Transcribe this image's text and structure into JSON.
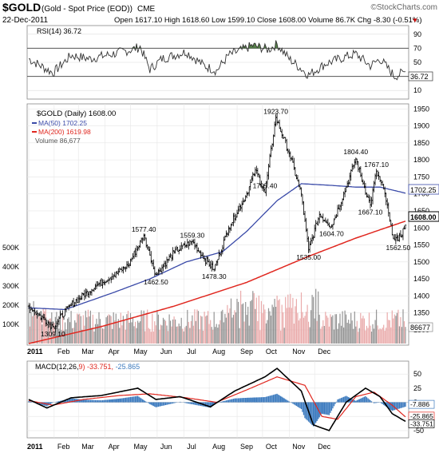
{
  "header": {
    "symbol": "$GOLD",
    "name": "(Gold - Spot Price (EOD))",
    "exchange": "CME",
    "watermark": "©StockCharts.com",
    "date": "22-Dec-2011",
    "ohlc": "Open 1617.10  High 1618.60  Low 1599.10  Close 1608.00  Volume 86.7K  Chg -8.30 (-0.51%)",
    "chg_marker": "▼"
  },
  "rsi": {
    "label": "RSI(14) 36.72",
    "current": 36.72,
    "ticks": [
      "90",
      "70",
      "50",
      "30",
      "10"
    ],
    "levels": [
      90,
      70,
      50,
      30,
      10
    ],
    "value_label": "36.72"
  },
  "price": {
    "title": "$GOLD (Daily) 1608.00",
    "legend_ma50": "MA(50) 1702.25",
    "legend_ma200": "MA(200) 1619.98",
    "legend_volume": "Volume 86,677",
    "ticks": [
      "1950",
      "1900",
      "1850",
      "1800",
      "1750",
      "1700",
      "1650",
      "1600",
      "1550",
      "1500",
      "1450",
      "1400",
      "1350",
      "1300"
    ],
    "tick_values": [
      1950,
      1900,
      1850,
      1800,
      1750,
      1700,
      1650,
      1600,
      1550,
      1500,
      1450,
      1400,
      1350,
      1300
    ],
    "ma50_label": "1702.25",
    "close_label": "1608.00",
    "volume_label": "86677",
    "volume_ticks": [
      "500K",
      "400K",
      "300K",
      "200K",
      "100K"
    ],
    "volume_tick_values": [
      500000,
      400000,
      300000,
      200000,
      100000
    ]
  },
  "macd": {
    "label": "MACD(12,26,9) -33.751, -25.865, -7.886",
    "ticks": [
      "50",
      "25",
      "0",
      "-25",
      "-50"
    ],
    "tick_values": [
      50,
      25,
      0,
      -25,
      -50
    ],
    "labels": [
      "-7.886",
      "-25.865",
      "-33.751"
    ]
  },
  "xaxis": {
    "labels": [
      "2011",
      "Feb",
      "Mar",
      "Apr",
      "May",
      "Jun",
      "Jul",
      "Aug",
      "Sep",
      "Oct",
      "Nov",
      "Dec"
    ]
  },
  "colors": {
    "price_bar": "#000000",
    "ma50": "#3a4aa8",
    "ma200": "#e0271f",
    "volume_up": "#8a8a8a",
    "volume_down": "#e8a2a2",
    "macd_line": "#000000",
    "signal_line": "#e0271f",
    "histogram": "#3d7bbf",
    "rsi_fill": "#3a6a2a"
  },
  "chart_data": {
    "type": "line",
    "title": "$GOLD (Daily) 1608.00",
    "months": [
      "2011",
      "Feb",
      "Mar",
      "Apr",
      "May",
      "Jun",
      "Jul",
      "Aug",
      "Sep",
      "Oct",
      "Nov",
      "Dec"
    ],
    "price_close_anchors": [
      {
        "x": 0,
        "y": 1370
      },
      {
        "x": 8,
        "y": 1345
      },
      {
        "x": 20,
        "y": 1309.1
      },
      {
        "x": 35,
        "y": 1375
      },
      {
        "x": 55,
        "y": 1430
      },
      {
        "x": 70,
        "y": 1460
      },
      {
        "x": 82,
        "y": 1490
      },
      {
        "x": 95,
        "y": 1577.4
      },
      {
        "x": 100,
        "y": 1520
      },
      {
        "x": 105,
        "y": 1462.5
      },
      {
        "x": 120,
        "y": 1530
      },
      {
        "x": 135,
        "y": 1559.3
      },
      {
        "x": 145,
        "y": 1510
      },
      {
        "x": 153,
        "y": 1478.3
      },
      {
        "x": 165,
        "y": 1600
      },
      {
        "x": 180,
        "y": 1700
      },
      {
        "x": 187,
        "y": 1770
      },
      {
        "x": 195,
        "y": 1705.4
      },
      {
        "x": 204,
        "y": 1923.7
      },
      {
        "x": 215,
        "y": 1820
      },
      {
        "x": 225,
        "y": 1700
      },
      {
        "x": 231,
        "y": 1535
      },
      {
        "x": 240,
        "y": 1640
      },
      {
        "x": 250,
        "y": 1604.7
      },
      {
        "x": 262,
        "y": 1720
      },
      {
        "x": 270,
        "y": 1804.4
      },
      {
        "x": 276,
        "y": 1730
      },
      {
        "x": 282,
        "y": 1667.1
      },
      {
        "x": 287,
        "y": 1767.1
      },
      {
        "x": 294,
        "y": 1700
      },
      {
        "x": 300,
        "y": 1580
      },
      {
        "x": 305,
        "y": 1562.5
      },
      {
        "x": 311,
        "y": 1608
      }
    ],
    "price_annotations": [
      {
        "label": "1309.10",
        "x": 20,
        "y": 1309.1
      },
      {
        "label": "1577.40",
        "x": 95,
        "y": 1577.4
      },
      {
        "label": "1462.50",
        "x": 105,
        "y": 1462.5
      },
      {
        "label": "1559.30",
        "x": 135,
        "y": 1559.3
      },
      {
        "label": "1478.30",
        "x": 153,
        "y": 1478.3
      },
      {
        "label": "1705.40",
        "x": 195,
        "y": 1705.4
      },
      {
        "label": "1923.70",
        "x": 204,
        "y": 1923.7
      },
      {
        "label": "1535.00",
        "x": 231,
        "y": 1535
      },
      {
        "label": "1604.70",
        "x": 250,
        "y": 1604.7
      },
      {
        "label": "1804.40",
        "x": 270,
        "y": 1804.4
      },
      {
        "label": "1667.10",
        "x": 282,
        "y": 1667.1
      },
      {
        "label": "1767.10",
        "x": 287,
        "y": 1767.1
      },
      {
        "label": "1562.50",
        "x": 305,
        "y": 1562.5
      }
    ],
    "ma50_anchors": [
      {
        "x": 0,
        "y": 1365
      },
      {
        "x": 30,
        "y": 1360
      },
      {
        "x": 70,
        "y": 1410
      },
      {
        "x": 100,
        "y": 1450
      },
      {
        "x": 130,
        "y": 1500
      },
      {
        "x": 160,
        "y": 1530
      },
      {
        "x": 180,
        "y": 1590
      },
      {
        "x": 205,
        "y": 1680
      },
      {
        "x": 225,
        "y": 1730
      },
      {
        "x": 250,
        "y": 1725
      },
      {
        "x": 270,
        "y": 1720
      },
      {
        "x": 290,
        "y": 1720
      },
      {
        "x": 311,
        "y": 1702.25
      }
    ],
    "ma200_anchors": [
      {
        "x": 0,
        "y": 1260
      },
      {
        "x": 60,
        "y": 1310
      },
      {
        "x": 120,
        "y": 1370
      },
      {
        "x": 180,
        "y": 1440
      },
      {
        "x": 230,
        "y": 1515
      },
      {
        "x": 270,
        "y": 1570
      },
      {
        "x": 311,
        "y": 1619.98
      }
    ],
    "rsi_anchors": [
      {
        "x": 0,
        "y": 55
      },
      {
        "x": 10,
        "y": 45
      },
      {
        "x": 20,
        "y": 35
      },
      {
        "x": 35,
        "y": 60
      },
      {
        "x": 50,
        "y": 55
      },
      {
        "x": 70,
        "y": 62
      },
      {
        "x": 85,
        "y": 68
      },
      {
        "x": 92,
        "y": 72
      },
      {
        "x": 100,
        "y": 40
      },
      {
        "x": 110,
        "y": 55
      },
      {
        "x": 130,
        "y": 65
      },
      {
        "x": 145,
        "y": 45
      },
      {
        "x": 155,
        "y": 38
      },
      {
        "x": 165,
        "y": 60
      },
      {
        "x": 185,
        "y": 74
      },
      {
        "x": 198,
        "y": 68
      },
      {
        "x": 205,
        "y": 76
      },
      {
        "x": 215,
        "y": 55
      },
      {
        "x": 231,
        "y": 32
      },
      {
        "x": 245,
        "y": 48
      },
      {
        "x": 262,
        "y": 58
      },
      {
        "x": 270,
        "y": 62
      },
      {
        "x": 282,
        "y": 45
      },
      {
        "x": 290,
        "y": 55
      },
      {
        "x": 302,
        "y": 30
      },
      {
        "x": 311,
        "y": 36.72
      }
    ],
    "macd_anchors": [
      {
        "x": 0,
        "y": 5
      },
      {
        "x": 15,
        "y": -10
      },
      {
        "x": 35,
        "y": 8
      },
      {
        "x": 60,
        "y": 12
      },
      {
        "x": 90,
        "y": 25
      },
      {
        "x": 105,
        "y": 5
      },
      {
        "x": 125,
        "y": 10
      },
      {
        "x": 150,
        "y": -8
      },
      {
        "x": 170,
        "y": 20
      },
      {
        "x": 195,
        "y": 45
      },
      {
        "x": 205,
        "y": 60
      },
      {
        "x": 225,
        "y": 20
      },
      {
        "x": 235,
        "y": -40
      },
      {
        "x": 248,
        "y": -50
      },
      {
        "x": 262,
        "y": 0
      },
      {
        "x": 278,
        "y": 25
      },
      {
        "x": 290,
        "y": 10
      },
      {
        "x": 300,
        "y": -20
      },
      {
        "x": 311,
        "y": -33.751
      }
    ],
    "signal_anchors": [
      {
        "x": 0,
        "y": 3
      },
      {
        "x": 20,
        "y": -5
      },
      {
        "x": 45,
        "y": 5
      },
      {
        "x": 75,
        "y": 12
      },
      {
        "x": 100,
        "y": 15
      },
      {
        "x": 130,
        "y": 8
      },
      {
        "x": 155,
        "y": 0
      },
      {
        "x": 180,
        "y": 22
      },
      {
        "x": 205,
        "y": 45
      },
      {
        "x": 228,
        "y": 30
      },
      {
        "x": 242,
        "y": -25
      },
      {
        "x": 255,
        "y": -30
      },
      {
        "x": 270,
        "y": 10
      },
      {
        "x": 285,
        "y": 18
      },
      {
        "x": 300,
        "y": -5
      },
      {
        "x": 311,
        "y": -25.865
      }
    ],
    "ylim_price": [
      1260,
      1960
    ],
    "ylim_rsi": [
      0,
      100
    ],
    "ylim_macd": [
      -60,
      70
    ],
    "grid": true
  }
}
